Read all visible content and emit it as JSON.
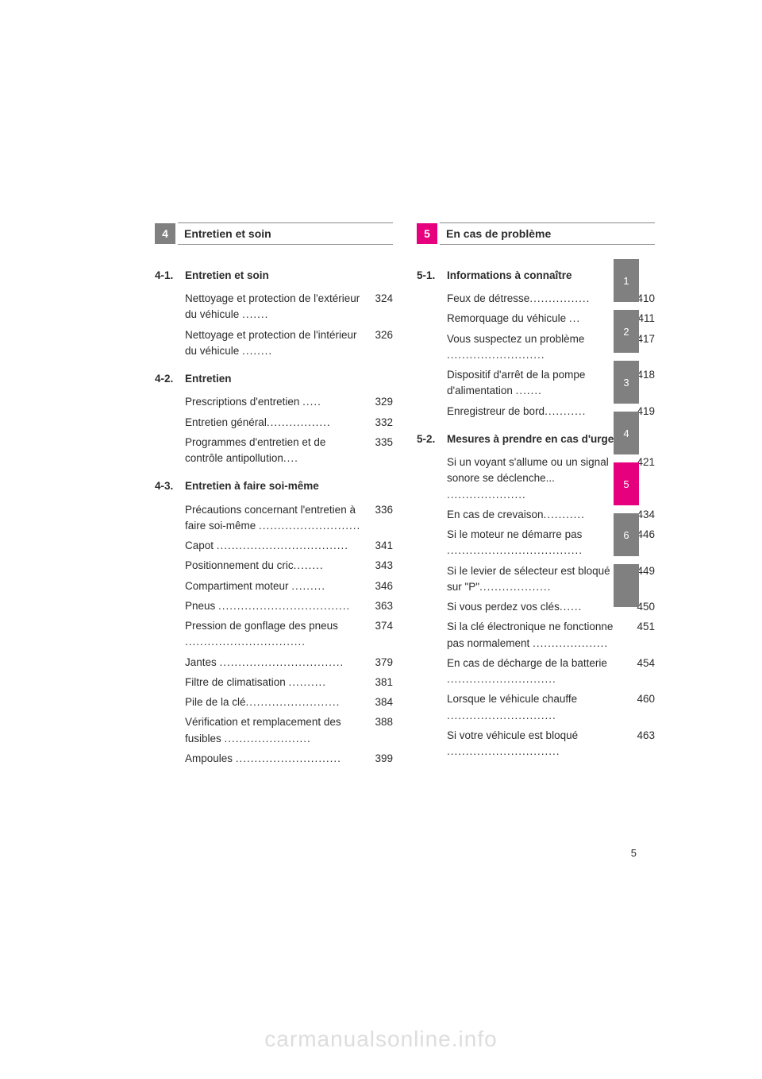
{
  "page_number": "5",
  "watermark": "carmanualsonline.info",
  "tabs": [
    {
      "label": "1",
      "style": "gray"
    },
    {
      "label": "2",
      "style": "gray"
    },
    {
      "label": "3",
      "style": "gray"
    },
    {
      "label": "4",
      "style": "gray"
    },
    {
      "label": "5",
      "style": "pink"
    },
    {
      "label": "6",
      "style": "gray"
    },
    {
      "label": "",
      "style": "blank"
    }
  ],
  "left": {
    "section_number": "4",
    "section_title": "Entretien et soin",
    "header_box_color": "#808080",
    "subsections": [
      {
        "num": "4-1.",
        "title": "Entretien et soin",
        "entries": [
          {
            "label": "Nettoyage et protection de l'extérieur du véhicule ",
            "dots": ".......",
            "page": "324"
          },
          {
            "label": "Nettoyage et protection de l'intérieur du véhicule ",
            "dots": "........",
            "page": "326"
          }
        ]
      },
      {
        "num": "4-2.",
        "title": "Entretien",
        "entries": [
          {
            "label": "Prescriptions d'entretien ",
            "dots": ".....",
            "page": "329"
          },
          {
            "label": "Entretien général",
            "dots": ".................",
            "page": "332"
          },
          {
            "label": "Programmes d'entretien et de contrôle antipollution",
            "dots": "....",
            "page": "335"
          }
        ]
      },
      {
        "num": "4-3.",
        "title": "Entretien à faire soi-même",
        "entries": [
          {
            "label": "Précautions concernant l'entretien à faire soi-même ",
            "dots": "...........................",
            "page": "336"
          },
          {
            "label": "Capot ",
            "dots": "...................................",
            "page": "341"
          },
          {
            "label": "Positionnement du cric",
            "dots": "........",
            "page": "343"
          },
          {
            "label": "Compartiment moteur ",
            "dots": ".........",
            "page": "346"
          },
          {
            "label": "Pneus ",
            "dots": "...................................",
            "page": "363"
          },
          {
            "label": "Pression de gonflage des pneus ",
            "dots": "................................",
            "page": "374"
          },
          {
            "label": "Jantes ",
            "dots": ".................................",
            "page": "379"
          },
          {
            "label": "Filtre de climatisation ",
            "dots": "..........",
            "page": "381"
          },
          {
            "label": "Pile de la clé",
            "dots": ".........................",
            "page": "384"
          },
          {
            "label": "Vérification et remplacement des fusibles ",
            "dots": ".......................",
            "page": "388"
          },
          {
            "label": "Ampoules ",
            "dots": "............................",
            "page": "399"
          }
        ]
      }
    ]
  },
  "right": {
    "section_number": "5",
    "section_title": "En cas de problème",
    "header_box_color": "#e6007e",
    "subsections": [
      {
        "num": "5-1.",
        "title": "Informations à connaître",
        "entries": [
          {
            "label": "Feux de détresse",
            "dots": "................",
            "page": "410"
          },
          {
            "label": "Remorquage du véhicule ",
            "dots": "...",
            "page": "411"
          },
          {
            "label": "Vous suspectez un problème ",
            "dots": "..........................",
            "page": "417"
          },
          {
            "label": "Dispositif d'arrêt de la pompe d'alimentation ",
            "dots": ".......",
            "page": "418"
          },
          {
            "label": "Enregistreur de bord",
            "dots": "...........",
            "page": "419"
          }
        ]
      },
      {
        "num": "5-2.",
        "title": "Mesures à prendre en cas d'urgence",
        "entries": [
          {
            "label": "Si un voyant s'allume ou un signal sonore se déclenche... ",
            "dots": ".....................",
            "page": "421"
          },
          {
            "label": "En cas de crevaison",
            "dots": "...........",
            "page": "434"
          },
          {
            "label": "Si le moteur ne démarre pas ",
            "dots": "....................................",
            "page": "446"
          },
          {
            "label": "Si le levier de sélecteur est bloqué sur \"P\"",
            "dots": "...................",
            "page": "449"
          },
          {
            "label": "Si vous perdez vos clés",
            "dots": "......",
            "page": "450"
          },
          {
            "label": "Si la clé électronique ne fonctionne pas normalement ",
            "dots": "....................",
            "page": "451"
          },
          {
            "label": "En cas de décharge de la batterie ",
            "dots": ".............................",
            "page": "454"
          },
          {
            "label": "Lorsque le véhicule chauffe ",
            "dots": ".............................",
            "page": "460"
          },
          {
            "label": "Si votre véhicule est bloqué ",
            "dots": "..............................",
            "page": "463"
          }
        ]
      }
    ]
  }
}
